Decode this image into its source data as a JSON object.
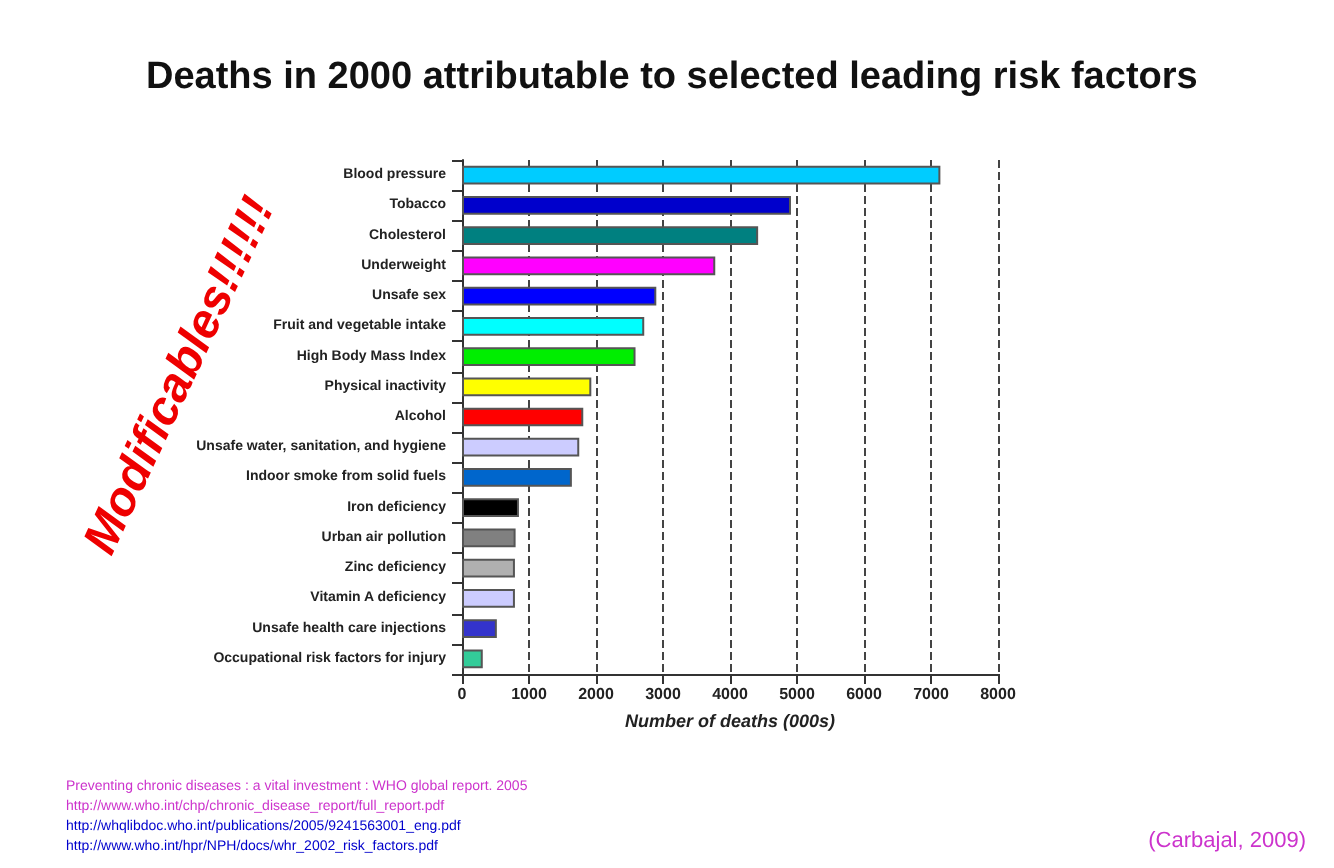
{
  "chart_data": {
    "type": "bar",
    "orientation": "horizontal",
    "title": "Deaths in 2000 attributable to selected leading risk factors",
    "xlabel": "Number of deaths (000s)",
    "categories": [
      "Blood pressure",
      "Tobacco",
      "Cholesterol",
      "Underweight",
      "Unsafe sex",
      "Fruit and vegetable intake",
      "High Body Mass Index",
      "Physical inactivity",
      "Alcohol",
      "Unsafe water, sanitation, and hygiene",
      "Indoor smoke from solid fuels",
      "Iron deficiency",
      "Urban air pollution",
      "Zinc deficiency",
      "Vitamin A deficiency",
      "Unsafe health care injections",
      "Occupational risk factors for injury"
    ],
    "values": [
      7140,
      4910,
      4420,
      3780,
      2900,
      2720,
      2590,
      1930,
      1810,
      1750,
      1640,
      850,
      800,
      790,
      790,
      520,
      310
    ],
    "colors": [
      "#00ccff",
      "#0000cc",
      "#008080",
      "#ff00ff",
      "#0000ff",
      "#00ffff",
      "#00ee00",
      "#ffff00",
      "#ff0000",
      "#ccccff",
      "#0066cc",
      "#000000",
      "#808080",
      "#b0b0b0",
      "#ccccff",
      "#3333cc",
      "#33cc99"
    ],
    "xlim": [
      0,
      8000
    ],
    "xticks": [
      0,
      1000,
      2000,
      3000,
      4000,
      5000,
      6000,
      7000,
      8000
    ],
    "grid": "x",
    "annotations": [
      "Modificables!!!!!!",
      "Preventing chronic diseases : a vital investment : WHO global report. 2005",
      "http://www.who.int/chp/chronic_disease_report/full_report.pdf",
      "http://whqlibdoc.who.int/publications/2005/9241563001_eng.pdf",
      "http://www.who.int/hpr/NPH/docs/whr_2002_risk_factors.pdf",
      "(Carbajal, 2009)"
    ]
  }
}
